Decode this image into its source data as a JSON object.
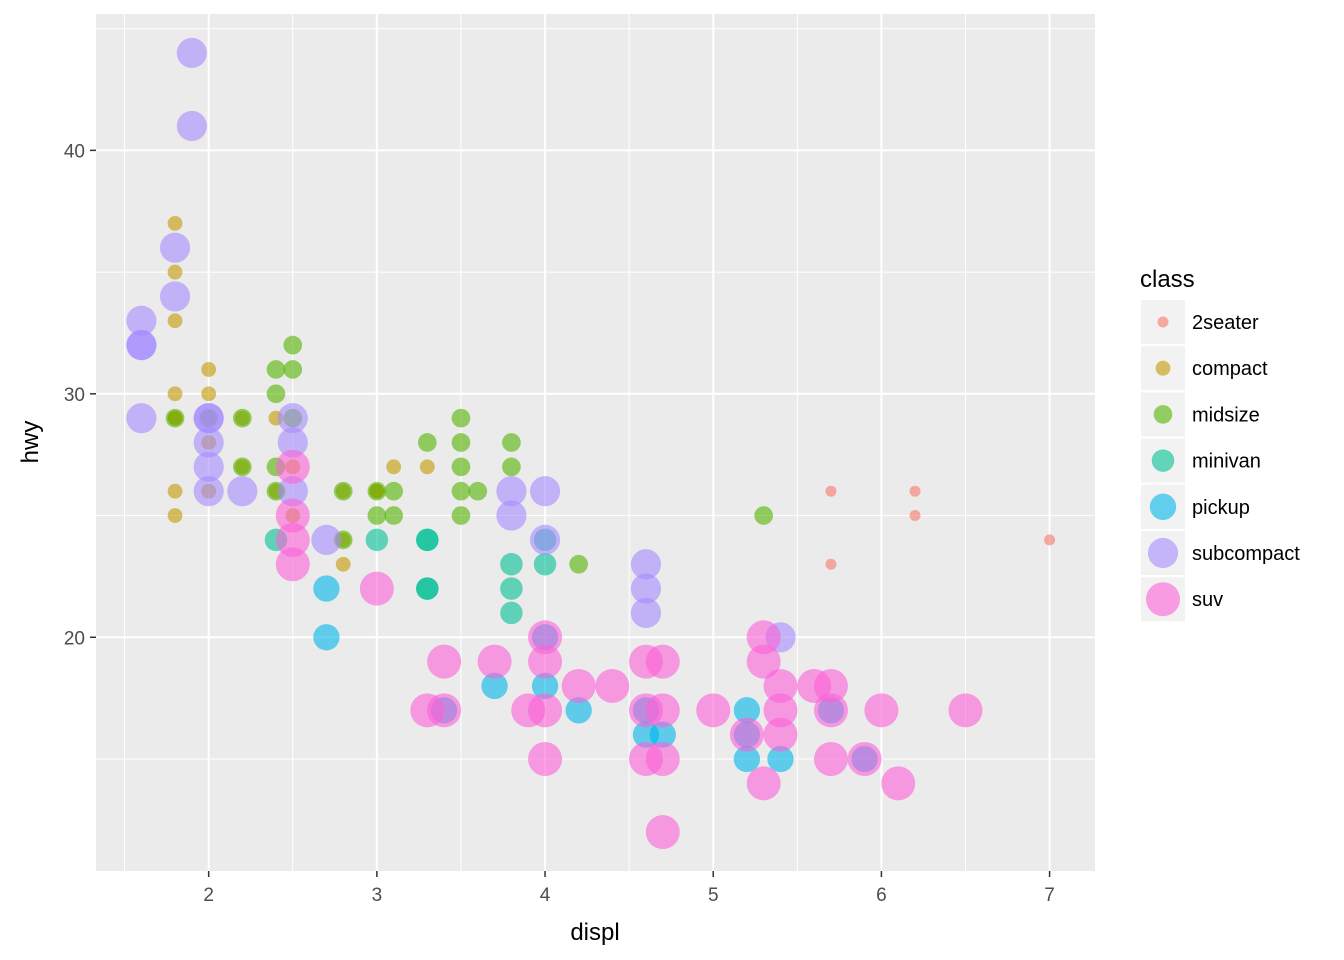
{
  "chart_data": {
    "type": "scatter",
    "xlabel": "displ",
    "ylabel": "hwy",
    "xlim": [
      1.33,
      7.27
    ],
    "ylim": [
      10.4,
      45.6
    ],
    "x_ticks": [
      2,
      3,
      4,
      5,
      6,
      7
    ],
    "y_ticks": [
      20,
      30,
      40
    ],
    "x_tick_labels": [
      "2",
      "3",
      "4",
      "5",
      "6",
      "7"
    ],
    "y_tick_labels": [
      "20",
      "30",
      "40"
    ],
    "grid": true,
    "legend": {
      "title": "class",
      "position": "right",
      "entries": [
        "2seater",
        "compact",
        "midsize",
        "minivan",
        "pickup",
        "subcompact",
        "suv"
      ]
    },
    "size_mapping": "class",
    "alpha": 0.6,
    "colors": {
      "2seater": "#F8766D",
      "compact": "#C49A00",
      "midsize": "#53B400",
      "minivan": "#00C094",
      "pickup": "#00B6EB",
      "subcompact": "#A58AFF",
      "suv": "#FB61D7"
    },
    "series": [
      {
        "name": "2seater",
        "x": [
          5.7,
          5.7,
          6.2,
          6.2,
          7.0
        ],
        "y": [
          26,
          23,
          26,
          25,
          24
        ]
      },
      {
        "name": "compact",
        "x": [
          1.8,
          1.8,
          1.8,
          1.8,
          1.8,
          1.8,
          1.8,
          1.8,
          2.0,
          2.0,
          2.0,
          2.0,
          2.0,
          2.2,
          2.2,
          2.4,
          2.4,
          2.5,
          2.5,
          2.8,
          2.8,
          2.8,
          3.0,
          3.0,
          3.1,
          3.3
        ],
        "y": [
          29,
          29,
          26,
          25,
          37,
          35,
          33,
          30,
          31,
          30,
          28,
          29,
          26,
          29,
          27,
          29,
          26,
          27,
          25,
          26,
          24,
          23,
          26,
          26,
          27,
          27
        ]
      },
      {
        "name": "midsize",
        "x": [
          1.8,
          2.0,
          2.2,
          2.2,
          2.4,
          2.4,
          2.4,
          2.4,
          2.5,
          2.5,
          2.5,
          2.8,
          2.8,
          3.0,
          3.0,
          3.1,
          3.1,
          3.3,
          3.5,
          3.5,
          3.5,
          3.5,
          3.5,
          3.6,
          3.8,
          3.8,
          4.2,
          5.3
        ],
        "y": [
          29,
          29,
          29,
          27,
          31,
          30,
          27,
          26,
          32,
          31,
          29,
          26,
          24,
          26,
          25,
          26,
          25,
          28,
          29,
          28,
          27,
          26,
          25,
          26,
          28,
          27,
          23,
          25
        ]
      },
      {
        "name": "minivan",
        "x": [
          2.4,
          3.0,
          3.3,
          3.3,
          3.3,
          3.3,
          3.8,
          3.8,
          3.8,
          4.0,
          4.0
        ],
        "y": [
          24,
          24,
          24,
          24,
          22,
          22,
          23,
          22,
          21,
          24,
          23
        ]
      },
      {
        "name": "pickup",
        "x": [
          2.7,
          2.7,
          3.4,
          3.7,
          4.0,
          4.0,
          4.2,
          4.6,
          4.6,
          4.7,
          5.2,
          5.2,
          5.2,
          5.4,
          5.7,
          5.9
        ],
        "y": [
          22,
          20,
          17,
          18,
          20,
          18,
          17,
          17,
          16,
          16,
          17,
          16,
          15,
          15,
          17,
          15
        ]
      },
      {
        "name": "subcompact",
        "x": [
          1.6,
          1.6,
          1.6,
          1.6,
          1.8,
          1.8,
          1.9,
          1.9,
          2.0,
          2.0,
          2.0,
          2.0,
          2.0,
          2.2,
          2.5,
          2.5,
          2.5,
          2.7,
          3.8,
          3.8,
          4.0,
          4.0,
          4.6,
          4.6,
          4.6,
          5.4
        ],
        "y": [
          33,
          32,
          32,
          29,
          36,
          34,
          44,
          41,
          29,
          29,
          28,
          27,
          26,
          26,
          29,
          28,
          26,
          24,
          26,
          25,
          26,
          24,
          23,
          22,
          21,
          20
        ]
      },
      {
        "name": "suv",
        "x": [
          2.5,
          2.5,
          2.5,
          2.5,
          3.0,
          3.3,
          3.4,
          3.4,
          3.7,
          3.9,
          4.0,
          4.0,
          4.0,
          4.0,
          4.2,
          4.4,
          4.6,
          4.6,
          4.6,
          4.7,
          4.7,
          4.7,
          4.7,
          5.0,
          5.2,
          5.3,
          5.3,
          5.3,
          5.4,
          5.4,
          5.4,
          5.6,
          5.7,
          5.7,
          5.7,
          5.9,
          6.0,
          6.1,
          6.5
        ],
        "y": [
          27,
          25,
          24,
          23,
          22,
          17,
          19,
          17,
          19,
          17,
          20,
          19,
          17,
          15,
          18,
          18,
          19,
          17,
          15,
          19,
          17,
          15,
          12,
          17,
          16,
          20,
          19,
          14,
          18,
          17,
          16,
          18,
          18,
          17,
          15,
          15,
          17,
          14,
          17
        ]
      }
    ]
  }
}
